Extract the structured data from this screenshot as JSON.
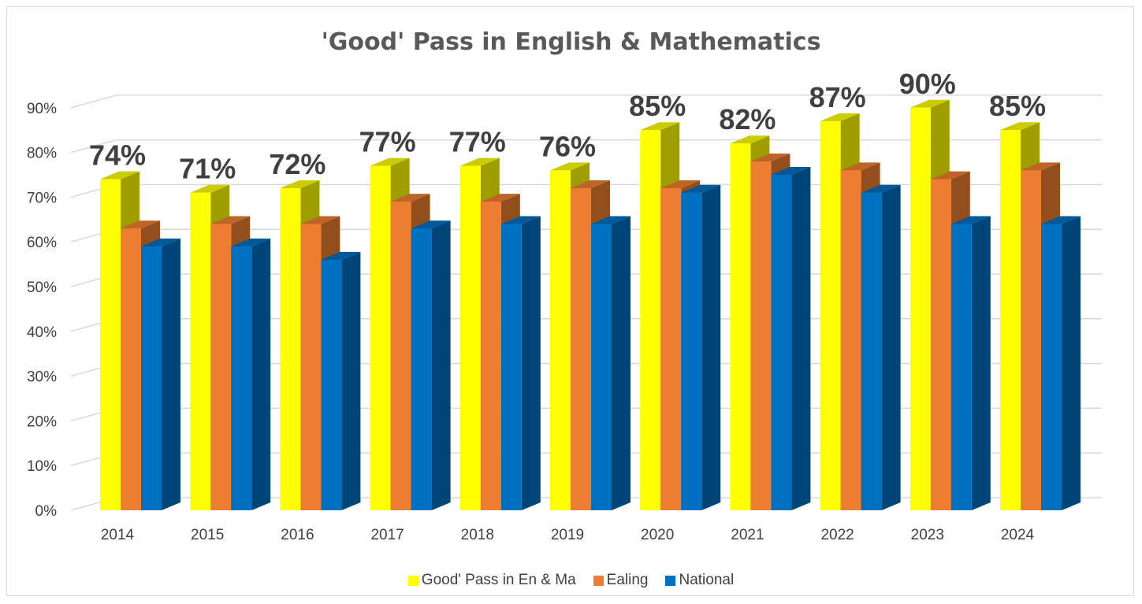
{
  "chart_data": {
    "type": "bar",
    "title": "'Good' Pass in English & Mathematics",
    "categories": [
      "2014",
      "2015",
      "2016",
      "2017",
      "2018",
      "2019",
      "2020",
      "2021",
      "2022",
      "2023",
      "2024"
    ],
    "series": [
      {
        "name": "Good' Pass in En & Ma",
        "color": "#ffff00",
        "values": [
          74,
          71,
          72,
          77,
          77,
          76,
          85,
          82,
          87,
          90,
          85
        ],
        "data_labels": [
          "74%",
          "71%",
          "72%",
          "77%",
          "77%",
          "76%",
          "85%",
          "82%",
          "87%",
          "90%",
          "85%"
        ]
      },
      {
        "name": "Ealing",
        "color": "#ed7d31",
        "values": [
          63,
          64,
          64,
          69,
          69,
          72,
          72,
          78,
          76,
          74,
          76
        ]
      },
      {
        "name": "National",
        "color": "#0070c0",
        "values": [
          59,
          59,
          56,
          63,
          64,
          64,
          71,
          75,
          71,
          64,
          64
        ]
      }
    ],
    "y_ticks": [
      "0%",
      "10%",
      "20%",
      "30%",
      "40%",
      "50%",
      "60%",
      "70%",
      "80%",
      "90%"
    ],
    "ylim": [
      0,
      90
    ],
    "grid": true,
    "legend_position": "bottom",
    "style": "3d-column"
  }
}
